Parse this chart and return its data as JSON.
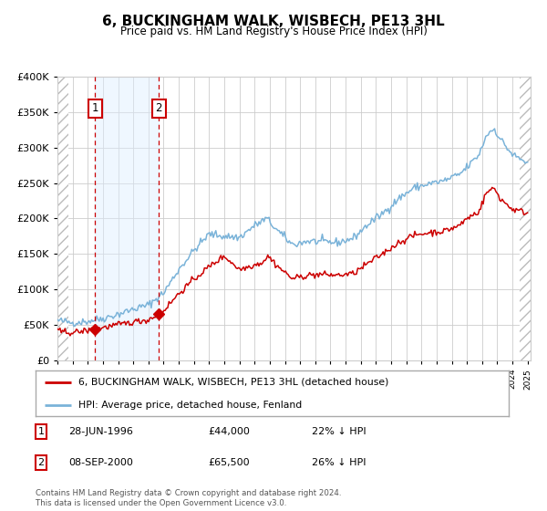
{
  "title": "6, BUCKINGHAM WALK, WISBECH, PE13 3HL",
  "subtitle": "Price paid vs. HM Land Registry's House Price Index (HPI)",
  "ylim": [
    0,
    400000
  ],
  "yticks": [
    0,
    50000,
    100000,
    150000,
    200000,
    250000,
    300000,
    350000,
    400000
  ],
  "year_start": 1994,
  "year_end": 2025,
  "hpi_color": "#7ab3d9",
  "price_color": "#cc0000",
  "bg_color": "#ffffff",
  "grid_color": "#cccccc",
  "hatch_color": "#bbbbbb",
  "sale1_year": 1996.49,
  "sale1_price": 44000,
  "sale2_year": 2000.69,
  "sale2_price": 65500,
  "legend1_label": "6, BUCKINGHAM WALK, WISBECH, PE13 3HL (detached house)",
  "legend2_label": "HPI: Average price, detached house, Fenland",
  "footnote": "Contains HM Land Registry data © Crown copyright and database right 2024.\nThis data is licensed under the Open Government Licence v3.0.",
  "shaded_region_color": "#ddeeff",
  "shaded_alpha": 0.45,
  "hpi_anchors_t": [
    1994.0,
    1995.0,
    1996.0,
    1997.0,
    1998.0,
    1999.0,
    2000.0,
    2001.0,
    2002.0,
    2003.0,
    2004.0,
    2005.0,
    2006.0,
    2007.0,
    2007.8,
    2008.5,
    2009.5,
    2010.5,
    2011.5,
    2012.5,
    2013.5,
    2014.5,
    2015.5,
    2016.5,
    2017.5,
    2018.5,
    2019.5,
    2020.5,
    2021.0,
    2021.8,
    2022.3,
    2022.8,
    2023.2,
    2024.0,
    2025.0
  ],
  "hpi_anchors_v": [
    56000,
    53000,
    55000,
    59000,
    65000,
    72000,
    78000,
    95000,
    128000,
    155000,
    178000,
    175000,
    173000,
    190000,
    200000,
    183000,
    163000,
    168000,
    167000,
    166000,
    172000,
    192000,
    208000,
    228000,
    243000,
    249000,
    253000,
    262000,
    272000,
    290000,
    318000,
    327000,
    312000,
    290000,
    278000
  ],
  "price_anchors_t": [
    1994.0,
    1995.0,
    1996.0,
    1997.0,
    1998.0,
    1999.0,
    2000.0,
    2001.0,
    2002.0,
    2003.0,
    2004.0,
    2005.0,
    2006.0,
    2007.5,
    2007.9,
    2008.5,
    2009.5,
    2010.5,
    2011.5,
    2012.5,
    2013.5,
    2014.5,
    2015.5,
    2016.5,
    2017.5,
    2018.5,
    2019.5,
    2020.5,
    2021.0,
    2021.8,
    2022.3,
    2022.8,
    2023.2,
    2024.0,
    2025.0
  ],
  "price_anchors_v": [
    41000,
    39000,
    42000,
    46000,
    50000,
    54000,
    57000,
    70000,
    94000,
    114000,
    132000,
    147000,
    128000,
    138000,
    147000,
    133000,
    115000,
    120000,
    121000,
    120000,
    122000,
    137000,
    151000,
    166000,
    176000,
    180000,
    182000,
    190000,
    200000,
    210000,
    237000,
    243000,
    228000,
    213000,
    208000
  ]
}
